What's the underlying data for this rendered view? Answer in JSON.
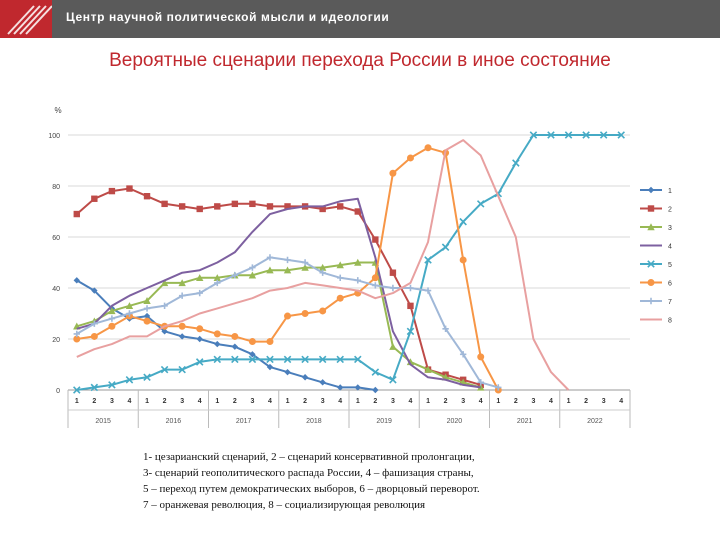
{
  "header": {
    "title": "Центр научной политической мысли и идеологии"
  },
  "slide_title": "Вероятные сценарии перехода России в иное состояние",
  "caption_lines": [
    "1- цезарианский сценарий, 2 – сценарий консервативной пролонгации,",
    "3- сценарий геополитического распада России, 4 – фашизация страны,",
    "5 – переход путем демократических выборов, 6 – дворцовый переворот.",
    "7 – оранжевая революция, 8 – социализирующая революция"
  ],
  "chart_data": {
    "type": "line",
    "ylabel": "%",
    "ylim": [
      0,
      100
    ],
    "yticks": [
      0,
      20,
      40,
      60,
      80,
      100
    ],
    "x": [
      "1",
      "2",
      "3",
      "4",
      "1",
      "2",
      "3",
      "4",
      "1",
      "2",
      "3",
      "4",
      "1",
      "2",
      "3",
      "4",
      "1",
      "2",
      "3",
      "4",
      "1",
      "2",
      "3",
      "4",
      "1",
      "2",
      "3",
      "4",
      "1",
      "2",
      "3",
      "4"
    ],
    "groups": [
      {
        "label": "2015",
        "quarters": 4
      },
      {
        "label": "2016",
        "quarters": 4
      },
      {
        "label": "2017",
        "quarters": 4
      },
      {
        "label": "2018",
        "quarters": 4
      },
      {
        "label": "2019",
        "quarters": 4
      },
      {
        "label": "2020",
        "quarters": 4
      },
      {
        "label": "2021",
        "quarters": 4
      },
      {
        "label": "2022",
        "quarters": 4
      }
    ],
    "legend_position": "right",
    "series": [
      {
        "name": "1",
        "color": "#4a7ebb",
        "marker": "diamond",
        "values": [
          43,
          39,
          32,
          28,
          29,
          23,
          21,
          20,
          18,
          17,
          14,
          9,
          7,
          5,
          3,
          1,
          1,
          0,
          null,
          null,
          null,
          null,
          null,
          null,
          null,
          null,
          null,
          null,
          null,
          null,
          null,
          null
        ]
      },
      {
        "name": "2",
        "color": "#be4b48",
        "marker": "square",
        "values": [
          69,
          75,
          78,
          79,
          76,
          73,
          72,
          71,
          72,
          73,
          73,
          72,
          72,
          72,
          71,
          72,
          70,
          59,
          46,
          33,
          8,
          6,
          4,
          2,
          null,
          null,
          null,
          null,
          null,
          null,
          null,
          null
        ]
      },
      {
        "name": "3",
        "color": "#98b954",
        "marker": "triangle",
        "values": [
          25,
          27,
          31,
          33,
          35,
          42,
          42,
          44,
          44,
          45,
          45,
          47,
          47,
          48,
          48,
          49,
          50,
          50,
          17,
          11,
          8,
          5,
          3,
          1,
          null,
          null,
          null,
          null,
          null,
          null,
          null,
          null
        ]
      },
      {
        "name": "4",
        "color": "#7d60a0",
        "marker": "none",
        "values": [
          24,
          26,
          33,
          37,
          40,
          43,
          46,
          47,
          50,
          54,
          62,
          69,
          71,
          72,
          72,
          74,
          75,
          52,
          23,
          10,
          5,
          4,
          2,
          1,
          null,
          null,
          null,
          null,
          null,
          null,
          null,
          null
        ]
      },
      {
        "name": "5",
        "color": "#46aac5",
        "marker": "x",
        "values": [
          0,
          1,
          2,
          4,
          5,
          8,
          8,
          11,
          12,
          12,
          12,
          12,
          12,
          12,
          12,
          12,
          12,
          7,
          4,
          23,
          51,
          56,
          66,
          73,
          77,
          89,
          100,
          100,
          100,
          100,
          100,
          100
        ]
      },
      {
        "name": "6",
        "color": "#f79646",
        "marker": "circle",
        "values": [
          20,
          21,
          25,
          29,
          27,
          25,
          25,
          24,
          22,
          21,
          19,
          19,
          29,
          30,
          31,
          36,
          38,
          44,
          85,
          91,
          95,
          93,
          51,
          13,
          0,
          null,
          null,
          null,
          null,
          null,
          null,
          null
        ]
      },
      {
        "name": "7",
        "color": "#a0b8d8",
        "marker": "plus",
        "values": [
          22,
          26,
          28,
          30,
          32,
          33,
          37,
          38,
          42,
          45,
          48,
          52,
          51,
          50,
          46,
          44,
          43,
          41,
          40,
          40,
          39,
          24,
          14,
          3,
          1,
          null,
          null,
          null,
          null,
          null,
          null,
          null
        ]
      },
      {
        "name": "8",
        "color": "#e8a0a0",
        "marker": "none",
        "values": [
          13,
          16,
          18,
          21,
          21,
          25,
          27,
          30,
          32,
          34,
          36,
          39,
          40,
          42,
          41,
          40,
          39,
          36,
          38,
          42,
          58,
          94,
          98,
          92,
          76,
          60,
          20,
          7,
          0,
          null,
          null,
          null
        ]
      }
    ]
  }
}
